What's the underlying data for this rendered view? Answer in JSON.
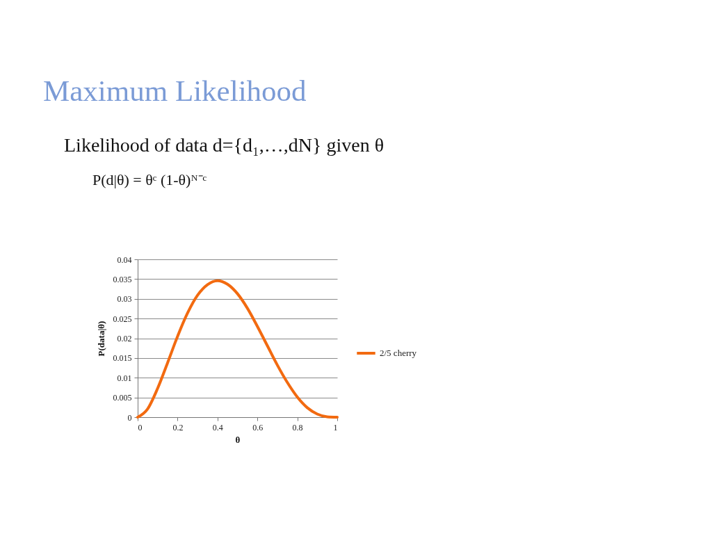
{
  "chart_data": {
    "type": "line",
    "title": "Maximum Likelihood",
    "annotations": [
      "Likelihood of data d={d₁,…,dN} given θ",
      "P(d|θ) = θᶜ (1-θ)ᴺ⁻ᶜ"
    ],
    "xlabel": "θ",
    "ylabel": "P(data|θ)",
    "x": [
      0,
      0.05,
      0.1,
      0.15,
      0.2,
      0.25,
      0.3,
      0.35,
      0.4,
      0.45,
      0.5,
      0.55,
      0.6,
      0.65,
      0.7,
      0.75,
      0.8,
      0.85,
      0.9,
      0.95,
      1
    ],
    "series": [
      {
        "name": "2/5 cherry",
        "color": "#f26a10",
        "values": [
          0,
          0.0021,
          0.0073,
          0.0138,
          0.0205,
          0.0264,
          0.0309,
          0.0336,
          0.0346,
          0.0337,
          0.0313,
          0.0276,
          0.023,
          0.0181,
          0.0132,
          0.0088,
          0.0051,
          0.0024,
          0.0008,
          0.0001,
          0
        ]
      }
    ],
    "xlim": [
      0,
      1
    ],
    "xticks": [
      0,
      0.2,
      0.4,
      0.6,
      0.8,
      1
    ],
    "ylim": [
      0,
      0.04
    ],
    "yticks": [
      0,
      0.005,
      0.01,
      0.015,
      0.02,
      0.025,
      0.03,
      0.035,
      0.04
    ],
    "grid": "y",
    "legend": "right",
    "line_style": "solid"
  }
}
